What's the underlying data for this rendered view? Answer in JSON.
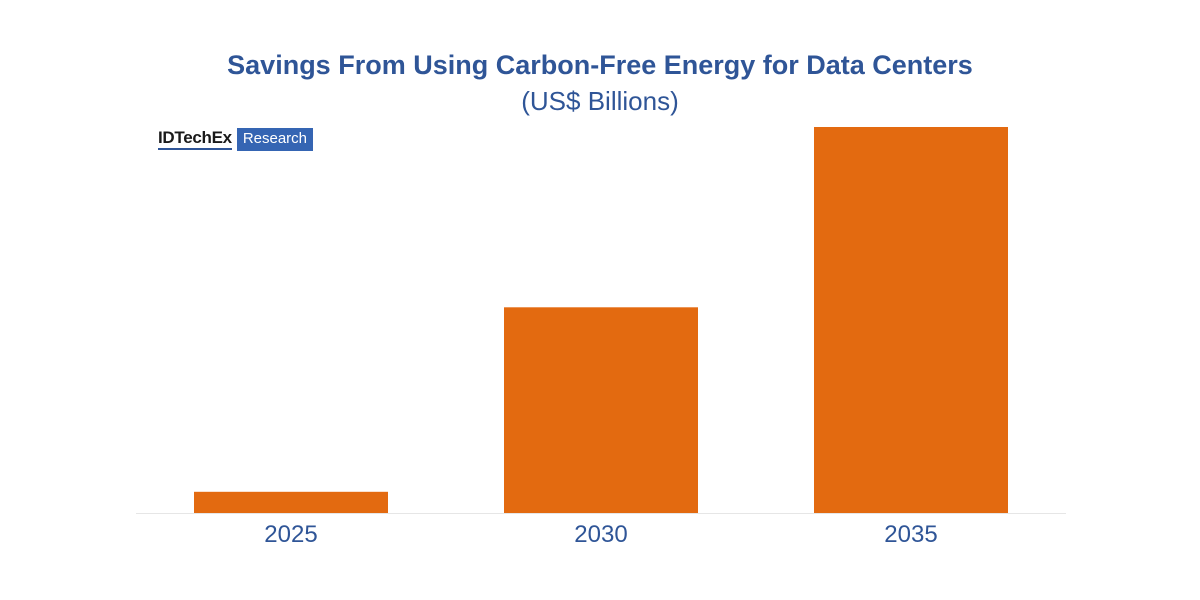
{
  "chart_data": {
    "type": "bar",
    "title": "Savings From Using Carbon-Free Energy for Data Centers",
    "subtitle": "(US$ Billions)",
    "xlabel": "",
    "ylabel": "",
    "categories": [
      "2025",
      "2030",
      "2035"
    ],
    "values": [
      5.5,
      53.3,
      100
    ],
    "ylim": [
      0,
      100
    ],
    "grid": false,
    "bar_color": "#e36a10",
    "axis_color": "#e6e6e6",
    "text_color": "#2f5597"
  },
  "branding": {
    "name": "IDTechEx",
    "tag": "Research",
    "tag_color": "#3565b3"
  }
}
